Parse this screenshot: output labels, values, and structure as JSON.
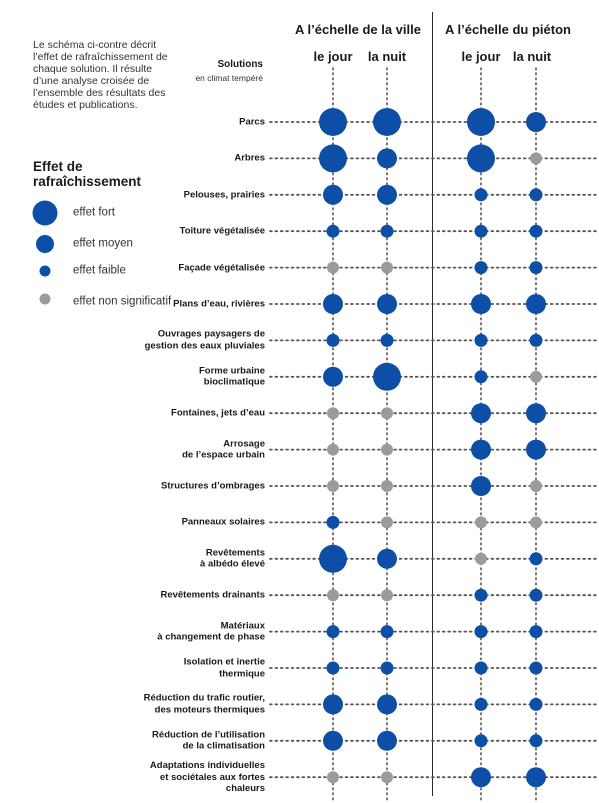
{
  "intro_text": "Le schéma ci-contre décrit l’effet de rafraîchissement de chaque solution. Il résulte d’une analyse croisée de l’ensemble des résultats des études et publications.",
  "legend": {
    "title": "Effet de rafraîchissement",
    "items": [
      {
        "level": "fort",
        "label": "effet fort",
        "color": "#0d4fa6"
      },
      {
        "level": "moyen",
        "label": "effet moyen",
        "color": "#0d4fa6"
      },
      {
        "level": "faible",
        "label": "effet faible",
        "color": "#0d4fa6"
      },
      {
        "level": "non",
        "label": "effet non significatif",
        "color": "#9b9b9b"
      }
    ]
  },
  "colors": {
    "effect": "#0d4fa6",
    "not_significant": "#9b9b9b",
    "dots": "#555555"
  },
  "solutions_header": {
    "title": "Solutions",
    "subtitle": "en climat tempéré"
  },
  "chart_data": {
    "type": "table",
    "scales": [
      {
        "name": "A l’échelle de la ville",
        "periods": [
          "le jour",
          "la nuit"
        ]
      },
      {
        "name": "A l’échelle du piéton",
        "periods": [
          "le jour",
          "la nuit"
        ]
      }
    ],
    "levels": [
      "fort",
      "moyen",
      "faible",
      "non"
    ],
    "rows": [
      {
        "solution": "Parcs",
        "values": [
          "fort",
          "fort",
          "fort",
          "moyen"
        ]
      },
      {
        "solution": "Arbres",
        "values": [
          "fort",
          "moyen",
          "fort",
          "non"
        ]
      },
      {
        "solution": "Pelouses, prairies",
        "values": [
          "moyen",
          "moyen",
          "faible",
          "faible"
        ]
      },
      {
        "solution": "Toiture végétalisée",
        "values": [
          "faible",
          "faible",
          "faible",
          "faible"
        ]
      },
      {
        "solution": "Façade végétalisée",
        "values": [
          "non",
          "non",
          "faible",
          "faible"
        ]
      },
      {
        "solution": "Plans d’eau, rivières",
        "values": [
          "moyen",
          "moyen",
          "moyen",
          "moyen"
        ]
      },
      {
        "solution": "Ouvrages paysagers de\ngestion des eaux pluviales",
        "values": [
          "faible",
          "faible",
          "faible",
          "faible"
        ]
      },
      {
        "solution": "Forme urbaine\nbioclimatique",
        "values": [
          "moyen",
          "fort",
          "faible",
          "non"
        ]
      },
      {
        "solution": "Fontaines, jets d’eau",
        "values": [
          "non",
          "non",
          "moyen",
          "moyen"
        ]
      },
      {
        "solution": "Arrosage\nde l’espace urbain",
        "values": [
          "non",
          "non",
          "moyen",
          "moyen"
        ]
      },
      {
        "solution": "Structures d’ombrages",
        "values": [
          "non",
          "non",
          "moyen",
          "non"
        ]
      },
      {
        "solution": "Panneaux solaires",
        "values": [
          "faible",
          "non",
          "non",
          "non"
        ]
      },
      {
        "solution": "Revêtements\nà albédo élevé",
        "values": [
          "fort",
          "moyen",
          "non",
          "faible"
        ]
      },
      {
        "solution": "Revêtements drainants",
        "values": [
          "non",
          "non",
          "faible",
          "faible"
        ]
      },
      {
        "solution": "Matériaux\nà changement de phase",
        "values": [
          "faible",
          "faible",
          "faible",
          "faible"
        ]
      },
      {
        "solution": "Isolation et inertie\nthermique",
        "values": [
          "faible",
          "faible",
          "faible",
          "faible"
        ]
      },
      {
        "solution": "Réduction du trafic routier,\ndes moteurs thermiques",
        "values": [
          "moyen",
          "moyen",
          "faible",
          "faible"
        ]
      },
      {
        "solution": "Réduction de l’utilisation\nde la climatisation",
        "values": [
          "moyen",
          "moyen",
          "faible",
          "faible"
        ]
      },
      {
        "solution": "Adaptations individuelles\net sociétales aux fortes\nchaleurs",
        "values": [
          "non",
          "non",
          "moyen",
          "moyen"
        ]
      }
    ]
  }
}
